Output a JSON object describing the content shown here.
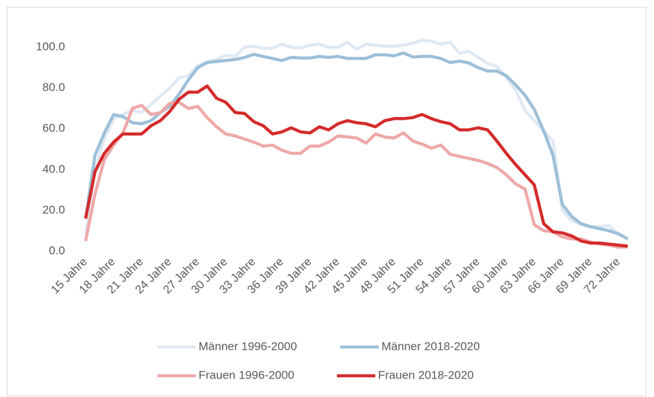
{
  "chart_data": {
    "type": "line",
    "categories": [
      "15 Jahre",
      null,
      null,
      "18 Jahre",
      null,
      null,
      "21 Jahre",
      null,
      null,
      "24 Jahre",
      null,
      null,
      "27 Jahre",
      null,
      null,
      "30 Jahre",
      null,
      null,
      "33 Jahre",
      null,
      null,
      "36 Jahre",
      null,
      null,
      "39 Jahre",
      null,
      null,
      "42 Jahre",
      null,
      null,
      "45 Jahre",
      null,
      null,
      "48 Jahre",
      null,
      null,
      "51 Jahre",
      null,
      null,
      "54 Jahre",
      null,
      null,
      "57 Jahre",
      null,
      null,
      "60 Jahre",
      null,
      null,
      "63 Jahre",
      null,
      null,
      "66 Jahre",
      null,
      null,
      "69 Jahre",
      null,
      null,
      "72 Jahre",
      null
    ],
    "series": [
      {
        "name": "Männer 1996-2000",
        "color": "#dfe9f3",
        "values": [
          8,
          40,
          55,
          65,
          67,
          69,
          68,
          72,
          76,
          80,
          85,
          86,
          91,
          93,
          94,
          96,
          95.5,
          100,
          100.5,
          99.5,
          99.5,
          101.5,
          100,
          99.5,
          101,
          101.5,
          100,
          100,
          102.5,
          99,
          101.5,
          101,
          100.5,
          100.5,
          101,
          102,
          103.5,
          103,
          101.5,
          102.5,
          97,
          98,
          95,
          92,
          90.5,
          85,
          79,
          69,
          64,
          59,
          54,
          20,
          15,
          13,
          12,
          12,
          12.5,
          8.5,
          6
        ]
      },
      {
        "name": "Männer 2018-2020",
        "color": "#9dbfd8",
        "values": [
          16,
          47,
          58,
          67,
          66,
          63,
          62.5,
          64,
          68,
          71,
          77,
          84,
          90,
          92.5,
          93,
          93.5,
          94,
          95,
          96.5,
          95.5,
          94.5,
          93.5,
          95,
          94.7,
          94.7,
          95.5,
          95,
          95.5,
          94.5,
          94.5,
          94.5,
          96.3,
          96.3,
          95.8,
          97.2,
          95.2,
          95.5,
          95.5,
          94.5,
          92.5,
          93.2,
          92.3,
          90,
          88.3,
          88.3,
          86,
          81.5,
          76.5,
          69.5,
          59,
          47,
          23,
          17,
          13.5,
          12,
          11,
          10,
          8.5,
          6
        ]
      },
      {
        "name": "Frauen 1996-2000",
        "color": "#eea8a8",
        "values": [
          5,
          28,
          45,
          52,
          58,
          70,
          71.5,
          67,
          68,
          72.5,
          73,
          70,
          71,
          65.5,
          61,
          57.5,
          56.5,
          55,
          53.5,
          51.5,
          52,
          49.5,
          48,
          48,
          51.5,
          51.5,
          53.5,
          56.5,
          56,
          55.5,
          53,
          57.5,
          56,
          55.5,
          58,
          54,
          52.5,
          50.5,
          52,
          47.5,
          46.5,
          45.5,
          44.5,
          43,
          41,
          37.5,
          33,
          30.5,
          13,
          10,
          9.5,
          7,
          6,
          6,
          4.5,
          3.5,
          3,
          2,
          2
        ]
      },
      {
        "name": "Frauen 2018-2020",
        "color": "#d42a2a",
        "values": [
          16,
          39,
          48,
          53.5,
          57.5,
          57.5,
          57.5,
          61.5,
          64,
          68.5,
          74.5,
          78,
          78,
          81,
          75,
          73,
          68,
          67.5,
          63.5,
          61.5,
          57.5,
          58.5,
          60.5,
          58.5,
          58,
          61,
          59.5,
          62.5,
          64,
          63,
          62.5,
          61,
          64,
          65,
          65,
          65.5,
          67,
          65,
          63.5,
          62.5,
          59.5,
          59.5,
          60.5,
          59.5,
          54,
          48,
          42.5,
          37.5,
          32.5,
          13.5,
          9.5,
          9,
          7.5,
          5,
          4,
          4,
          3.5,
          3,
          2.5
        ]
      }
    ],
    "ylim": [
      0,
      110
    ],
    "yticks": [
      {
        "value": 0,
        "label": "0.0"
      },
      {
        "value": 20,
        "label": "20.0"
      },
      {
        "value": 40,
        "label": "40.0"
      },
      {
        "value": 60,
        "label": "60.0"
      },
      {
        "value": 80,
        "label": "80.0"
      },
      {
        "value": 100,
        "label": "100.0"
      }
    ],
    "grid": false
  }
}
